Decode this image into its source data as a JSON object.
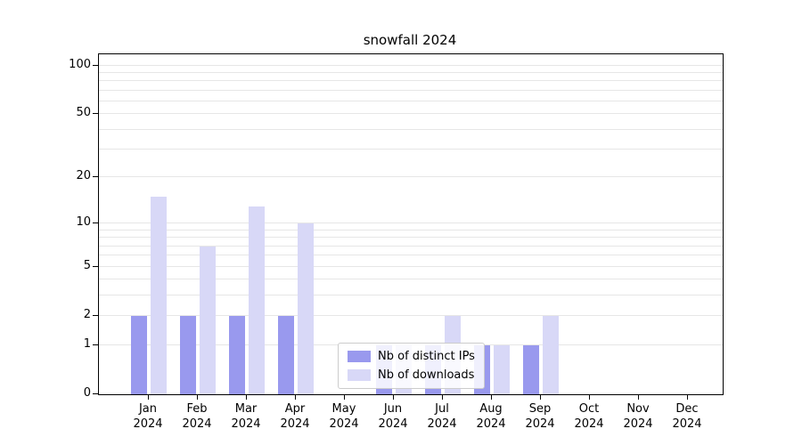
{
  "title": "snowfall 2024",
  "chart_data": {
    "type": "bar",
    "title": "snowfall 2024",
    "categories": [
      "Jan 2024",
      "Feb 2024",
      "Mar 2024",
      "Apr 2024",
      "May 2024",
      "Jun 2024",
      "Jul 2024",
      "Aug 2024",
      "Sep 2024",
      "Oct 2024",
      "Nov 2024",
      "Dec 2024"
    ],
    "series": [
      {
        "name": "Nb of distinct IPs",
        "color": "#9999ee",
        "values": [
          2,
          2,
          2,
          2,
          0,
          1,
          1,
          1,
          1,
          0,
          0,
          0
        ]
      },
      {
        "name": "Nb of downloads",
        "color": "#d8d8f7",
        "values": [
          15,
          7,
          13,
          10,
          0,
          1,
          2,
          1,
          2,
          0,
          0,
          0
        ]
      }
    ],
    "xlabel": "",
    "ylabel": "",
    "y_scale": "symlog",
    "ylim": [
      0,
      117
    ],
    "y_ticks": [
      0,
      1,
      2,
      5,
      10,
      20,
      50,
      100
    ],
    "y_tick_labels": [
      "0",
      "1",
      "2",
      "5",
      "10",
      "20",
      "50",
      "100"
    ],
    "grid_values": [
      1,
      2,
      3,
      4,
      5,
      6,
      7,
      8,
      9,
      10,
      20,
      30,
      40,
      50,
      60,
      70,
      80,
      90,
      100
    ],
    "grid": "horizontal",
    "legend_position": "lower center"
  },
  "colors": {
    "background": "#ffffff",
    "frame": "#000000",
    "grid": "#e6e6e6",
    "series_ips": "#9999ee",
    "series_downloads": "#d8d8f7",
    "legend_border": "#cccccc"
  },
  "legend": {
    "items": [
      {
        "label": "Nb of distinct IPs"
      },
      {
        "label": "Nb of downloads"
      }
    ]
  }
}
